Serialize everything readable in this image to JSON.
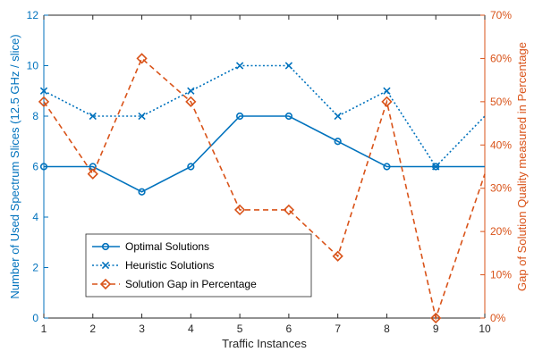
{
  "chart_data": {
    "type": "line",
    "x": [
      1,
      2,
      3,
      4,
      5,
      6,
      7,
      8,
      9,
      10
    ],
    "xlim": [
      1,
      10
    ],
    "xticks": [
      "1",
      "2",
      "3",
      "4",
      "5",
      "6",
      "7",
      "8",
      "9",
      "10"
    ],
    "xlabel": "Traffic Instances",
    "ylabel_left": "Number of Used Spectrum Slices (12.5 GHz / slice)",
    "ylim_left": [
      0,
      12
    ],
    "yticks_left": [
      "0",
      "2",
      "4",
      "6",
      "8",
      "10",
      "12"
    ],
    "ylabel_right": "Gap of Solution Quality measured in Percentage",
    "ylim_right": [
      0,
      70
    ],
    "yticks_right": [
      "0%",
      "10%",
      "20%",
      "30%",
      "40%",
      "50%",
      "60%",
      "70%"
    ],
    "grid": false,
    "legend_position": "lower-left",
    "series": [
      {
        "name": "Optimal Solutions",
        "axis": "left",
        "values": [
          6,
          6,
          5,
          6,
          8,
          8,
          7,
          6,
          6,
          6
        ],
        "color": "#0072BD",
        "style": "solid",
        "marker": "circle",
        "marker_count": 9
      },
      {
        "name": "Heuristic Solutions",
        "axis": "left",
        "values": [
          9,
          8,
          8,
          9,
          10,
          10,
          8,
          9,
          6,
          8
        ],
        "color": "#0072BD",
        "style": "dotted",
        "marker": "x",
        "marker_count": 9
      },
      {
        "name": "Solution Gap in Percentage",
        "axis": "right",
        "values": [
          50,
          33.3,
          60,
          50,
          25,
          25,
          14.3,
          50,
          0,
          33.3
        ],
        "color": "#D95319",
        "style": "dashed",
        "marker": "diamond",
        "marker_count": 9
      }
    ]
  }
}
